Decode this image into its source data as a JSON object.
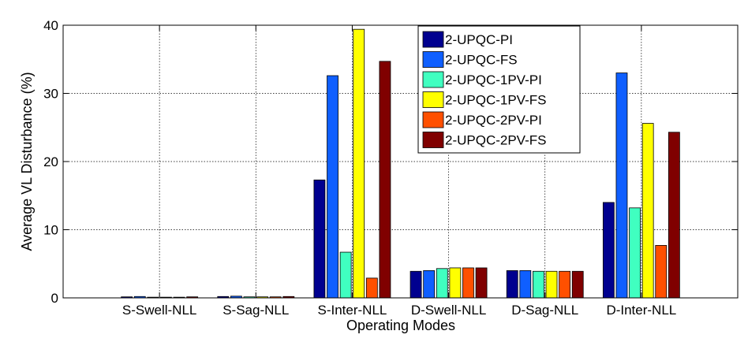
{
  "chart_data": {
    "type": "bar",
    "title": "",
    "xlabel": "Operating Modes",
    "ylabel": "Average VL Disturbance (%)",
    "ylim": [
      0,
      40
    ],
    "yticks": [
      0,
      10,
      20,
      30,
      40
    ],
    "grid": true,
    "legend_position": "top-right",
    "categories": [
      "S-Swell-NLL",
      "S-Sag-NLL",
      "S-Inter-NLL",
      "D-Swell-NLL",
      "D-Sag-NLL",
      "D-Inter-NLL"
    ],
    "series": [
      {
        "name": "2-UPQC-PI",
        "color": "#00008F",
        "values": [
          0.15,
          0.2,
          17.3,
          3.9,
          4.0,
          14.0
        ]
      },
      {
        "name": "2-UPQC-FS",
        "color": "#0F5FFF",
        "values": [
          0.2,
          0.25,
          32.6,
          4.0,
          4.0,
          33.0
        ]
      },
      {
        "name": "2-UPQC-1PV-PI",
        "color": "#40FFC0",
        "values": [
          0.1,
          0.15,
          6.7,
          4.3,
          3.9,
          13.2
        ]
      },
      {
        "name": "2-UPQC-1PV-FS",
        "color": "#FFFF00",
        "values": [
          0.1,
          0.15,
          39.4,
          4.4,
          3.9,
          25.6
        ]
      },
      {
        "name": "2-UPQC-2PV-PI",
        "color": "#FF5000",
        "values": [
          0.1,
          0.15,
          2.9,
          4.4,
          3.9,
          7.7
        ]
      },
      {
        "name": "2-UPQC-2PV-FS",
        "color": "#800000",
        "values": [
          0.15,
          0.2,
          34.7,
          4.4,
          3.9,
          24.3
        ]
      }
    ]
  }
}
